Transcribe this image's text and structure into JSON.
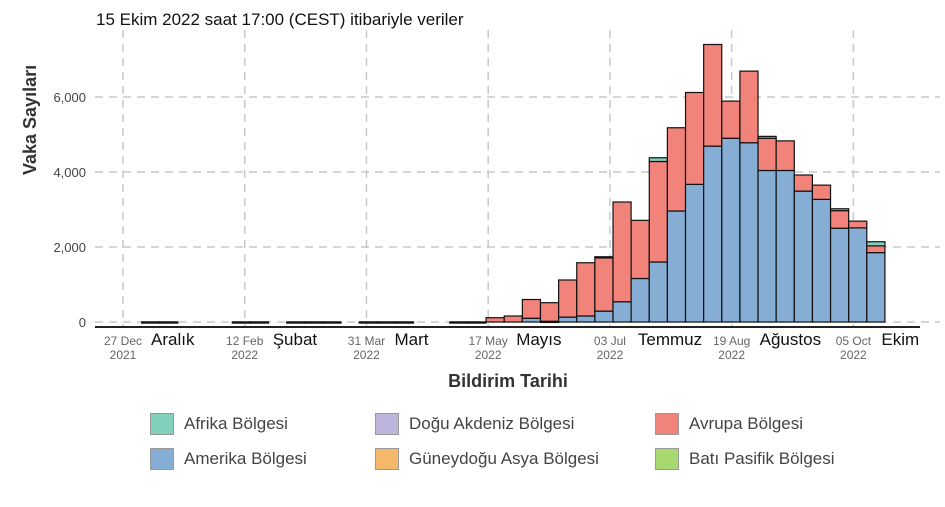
{
  "chart_data": {
    "type": "bar",
    "stacked": true,
    "title": "15 Ekim 2022 saat 17:00 (CEST) itibariyle veriler",
    "xlabel": "Bildirim Tarihi",
    "ylabel": "Vaka Sayıları",
    "ylim": [
      0,
      7600
    ],
    "yticks": [
      0,
      2000,
      4000,
      6000
    ],
    "ytick_labels": [
      "0",
      "2,000",
      "4,000",
      "6,000"
    ],
    "grid": true,
    "x_start": "2021-12-27",
    "xticks": [
      {
        "date": "2021-12-27",
        "line1": "27 Dec",
        "line2": "2021",
        "month": "Aralık"
      },
      {
        "date": "2022-02-12",
        "line1": "12 Feb",
        "line2": "2022",
        "month": "Şubat"
      },
      {
        "date": "2022-03-31",
        "line1": "31 Mar",
        "line2": "2022",
        "month": "Mart"
      },
      {
        "date": "2022-05-17",
        "line1": "17 May",
        "line2": "2022",
        "month": "Mayıs"
      },
      {
        "date": "2022-07-03",
        "line1": "03 Jul",
        "line2": "2022",
        "month": "Temmuz"
      },
      {
        "date": "2022-08-19",
        "line1": "19 Aug",
        "line2": "2022",
        "month": "Ağustos"
      },
      {
        "date": "2022-10-05",
        "line1": "05 Oct",
        "line2": "2022",
        "month": "Ekim"
      }
    ],
    "weeks": [
      "2022-01-03",
      "2022-01-10",
      "2022-02-07",
      "2022-02-14",
      "2022-02-28",
      "2022-03-07",
      "2022-03-14",
      "2022-03-28",
      "2022-04-04",
      "2022-04-11",
      "2022-05-02",
      "2022-05-09",
      "2022-05-16",
      "2022-05-23",
      "2022-05-30",
      "2022-06-06",
      "2022-06-13",
      "2022-06-20",
      "2022-06-27",
      "2022-07-04",
      "2022-07-11",
      "2022-07-18",
      "2022-07-25",
      "2022-08-01",
      "2022-08-08",
      "2022-08-15",
      "2022-08-22",
      "2022-08-29",
      "2022-09-05",
      "2022-09-12",
      "2022-09-19",
      "2022-09-26",
      "2022-10-03",
      "2022-10-10"
    ],
    "series": [
      {
        "name": "Amerika  Bölgesi",
        "color": "#86aed4",
        "values": [
          0,
          0,
          0,
          0,
          0,
          0,
          0,
          0,
          0,
          0,
          0,
          0,
          0,
          0,
          100,
          20,
          130,
          160,
          290,
          540,
          1160,
          1600,
          2960,
          3670,
          4690,
          4900,
          4780,
          4040,
          4040,
          3490,
          3270,
          2500,
          2510,
          1850
        ]
      },
      {
        "name": "Avrupa Bölgesi",
        "color": "#f2837a",
        "values": [
          3,
          3,
          3,
          3,
          3,
          3,
          3,
          3,
          3,
          3,
          3,
          3,
          115,
          160,
          500,
          495,
          990,
          1420,
          1420,
          2660,
          1550,
          2680,
          2220,
          2450,
          2710,
          990,
          1910,
          860,
          790,
          430,
          380,
          470,
          180,
          180
        ]
      },
      {
        "name": "Afrika  Bölgesi",
        "color": "#80d0bc",
        "values": [
          0,
          0,
          0,
          0,
          0,
          0,
          0,
          0,
          0,
          0,
          0,
          0,
          0,
          0,
          0,
          0,
          0,
          0,
          30,
          0,
          0,
          100,
          0,
          0,
          0,
          0,
          0,
          50,
          0,
          0,
          0,
          50,
          0,
          110
        ]
      },
      {
        "name": "Doğu Akdeniz Bölgesi",
        "color": "#bdb5dc",
        "values": [
          0,
          0,
          0,
          0,
          0,
          0,
          0,
          0,
          0,
          0,
          0,
          0,
          0,
          0,
          0,
          0,
          0,
          0,
          0,
          0,
          0,
          0,
          0,
          0,
          0,
          0,
          0,
          0,
          0,
          0,
          0,
          0,
          0,
          0
        ]
      },
      {
        "name": "Güneydoğu Asya Bölgesi",
        "color": "#f5b86a",
        "values": [
          0,
          0,
          0,
          0,
          0,
          0,
          0,
          0,
          0,
          0,
          0,
          0,
          0,
          0,
          0,
          0,
          0,
          0,
          0,
          0,
          0,
          0,
          0,
          0,
          0,
          0,
          0,
          0,
          0,
          0,
          0,
          0,
          0,
          0
        ]
      },
      {
        "name": "Batı Pasifik Bölgesi",
        "color": "#a8d870",
        "values": [
          0,
          0,
          0,
          0,
          0,
          0,
          0,
          0,
          0,
          0,
          0,
          0,
          0,
          0,
          0,
          0,
          0,
          0,
          0,
          0,
          0,
          0,
          0,
          0,
          0,
          0,
          0,
          0,
          0,
          0,
          0,
          0,
          0,
          0
        ]
      }
    ],
    "legend_order": [
      2,
      3,
      1,
      0,
      4,
      5
    ],
    "legend_placement": "bottom"
  }
}
